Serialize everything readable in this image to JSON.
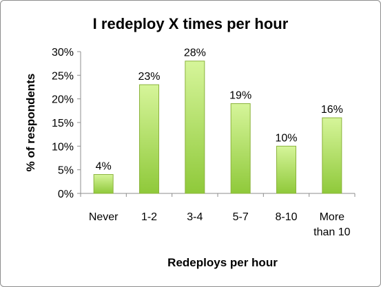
{
  "chart_data": {
    "type": "bar",
    "title": "I redeploy X times per hour",
    "xlabel": "Redeploys per hour",
    "ylabel": "% of respondents",
    "categories": [
      [
        "Never"
      ],
      [
        "1-2"
      ],
      [
        "3-4"
      ],
      [
        "5-7"
      ],
      [
        "8-10"
      ],
      [
        "More",
        "than 10"
      ]
    ],
    "values": [
      4,
      23,
      28,
      19,
      10,
      16
    ],
    "data_labels": [
      "4%",
      "23%",
      "28%",
      "19%",
      "10%",
      "16%"
    ],
    "ylim": [
      0,
      30
    ],
    "yticks": [
      0,
      5,
      10,
      15,
      20,
      25,
      30
    ],
    "ytick_labels": [
      "0%",
      "5%",
      "10%",
      "15%",
      "20%",
      "25%",
      "30%"
    ],
    "grid": false,
    "legend": "none",
    "bar_color_top": "#d6f59a",
    "bar_color_bottom": "#8fc93a",
    "bar_border": "#8bb33c"
  }
}
